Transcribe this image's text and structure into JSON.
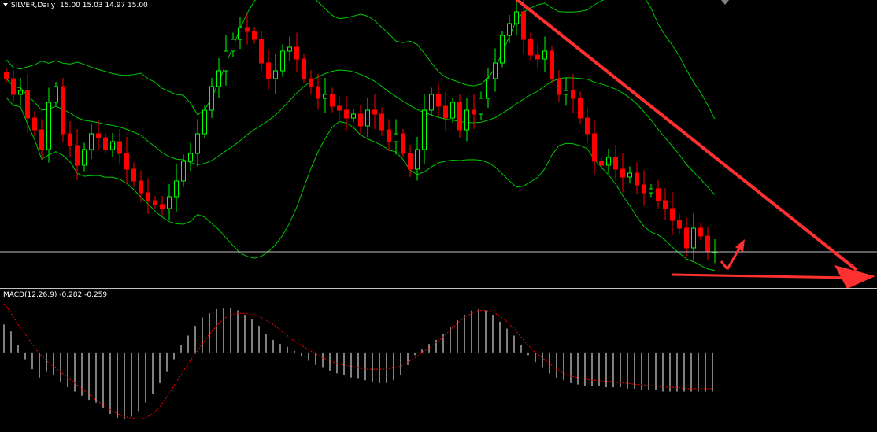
{
  "header": {
    "symbol": "SILVER,Daily",
    "ohlc": "15.00 15.03 14.97 15.00"
  },
  "indicator": {
    "name": "MACD(12,26,9)",
    "main": "-0.282",
    "signal": "-0.259"
  },
  "colors": {
    "background": "#000000",
    "bull": "#00ff00",
    "bear": "#ff0000",
    "bands": "#00c800",
    "annotation": "#ff3030",
    "macd_histogram": "#ffffff",
    "macd_signal": "#ff0000",
    "separator": "#c0c0c0"
  },
  "chart_data": [
    {
      "type": "candlestick",
      "title": "SILVER,Daily",
      "ohlc_readout": [
        15.0,
        15.03,
        14.97,
        15.0
      ],
      "overlays": [
        "bollinger-upper",
        "bollinger-middle",
        "bollinger-lower"
      ],
      "annotations": [
        "downtrend-line",
        "target-arrow",
        "support-line",
        "bounce-arrow"
      ],
      "horizontal_line_level": 15.0,
      "ylim": [
        14.55,
        18.2
      ],
      "closes": [
        17.2,
        17.0,
        17.05,
        16.7,
        16.55,
        16.3,
        16.9,
        17.1,
        16.5,
        16.35,
        16.1,
        16.3,
        16.5,
        16.45,
        16.3,
        16.4,
        16.25,
        16.05,
        15.9,
        15.75,
        15.65,
        15.6,
        15.55,
        15.7,
        15.9,
        16.15,
        16.25,
        16.5,
        16.8,
        17.1,
        17.3,
        17.55,
        17.7,
        17.85,
        17.8,
        17.7,
        17.4,
        17.2,
        17.3,
        17.55,
        17.6,
        17.45,
        17.2,
        17.1,
        16.95,
        17.0,
        16.85,
        16.8,
        16.7,
        16.75,
        16.6,
        16.8,
        16.75,
        16.55,
        16.4,
        16.5,
        16.25,
        16.05,
        16.3,
        16.8,
        17.0,
        16.85,
        16.7,
        16.9,
        16.55,
        16.8,
        16.75,
        16.95,
        17.2,
        17.4,
        17.75,
        17.9,
        18.05,
        17.7,
        17.5,
        17.45,
        17.55,
        17.2,
        17.0,
        17.05,
        16.95,
        16.7,
        16.5,
        16.15,
        16.1,
        16.2,
        16.05,
        15.95,
        16.0,
        15.85,
        15.75,
        15.8,
        15.65,
        15.55,
        15.4,
        15.3,
        15.05,
        15.3,
        15.2,
        15.0,
        15.0
      ],
      "series": [
        {
          "name": "MACD(12,26,9)",
          "type": "histogram",
          "last_value": -0.282,
          "values": [
            0.2,
            0.15,
            0.05,
            -0.05,
            -0.12,
            -0.18,
            -0.14,
            -0.16,
            -0.21,
            -0.25,
            -0.28,
            -0.31,
            -0.34,
            -0.36,
            -0.4,
            -0.44,
            -0.47,
            -0.48,
            -0.46,
            -0.42,
            -0.36,
            -0.3,
            -0.22,
            -0.14,
            -0.05,
            0.05,
            0.12,
            0.19,
            0.25,
            0.28,
            0.31,
            0.32,
            0.32,
            0.3,
            0.27,
            0.24,
            0.19,
            0.13,
            0.09,
            0.06,
            0.04,
            0.01,
            -0.03,
            -0.06,
            -0.09,
            -0.11,
            -0.13,
            -0.15,
            -0.16,
            -0.18,
            -0.19,
            -0.2,
            -0.21,
            -0.22,
            -0.22,
            -0.2,
            -0.16,
            -0.09,
            -0.02,
            0.02,
            0.06,
            0.09,
            0.13,
            0.18,
            0.23,
            0.27,
            0.3,
            0.31,
            0.3,
            0.27,
            0.22,
            0.17,
            0.12,
            0.05,
            -0.02,
            -0.07,
            -0.11,
            -0.15,
            -0.18,
            -0.2,
            -0.22,
            -0.23,
            -0.24,
            -0.24,
            -0.24,
            -0.25,
            -0.25,
            -0.25,
            -0.26,
            -0.26,
            -0.27,
            -0.27,
            -0.27,
            -0.28,
            -0.28,
            -0.28,
            -0.28,
            -0.28,
            -0.28,
            -0.28,
            -0.28
          ]
        },
        {
          "name": "Signal",
          "type": "line",
          "last_value": -0.259,
          "values": [
            0.35,
            0.28,
            0.2,
            0.13,
            0.06,
            -0.01,
            -0.06,
            -0.1,
            -0.14,
            -0.18,
            -0.22,
            -0.26,
            -0.3,
            -0.34,
            -0.38,
            -0.41,
            -0.44,
            -0.46,
            -0.47,
            -0.48,
            -0.47,
            -0.44,
            -0.39,
            -0.32,
            -0.24,
            -0.16,
            -0.08,
            -0.01,
            0.06,
            0.13,
            0.19,
            0.24,
            0.27,
            0.28,
            0.28,
            0.27,
            0.26,
            0.23,
            0.2,
            0.16,
            0.12,
            0.08,
            0.05,
            0.02,
            -0.01,
            -0.04,
            -0.06,
            -0.08,
            -0.09,
            -0.1,
            -0.11,
            -0.12,
            -0.12,
            -0.12,
            -0.12,
            -0.11,
            -0.1,
            -0.07,
            -0.04,
            0.0,
            0.03,
            0.07,
            0.11,
            0.16,
            0.21,
            0.25,
            0.28,
            0.3,
            0.3,
            0.29,
            0.26,
            0.22,
            0.17,
            0.11,
            0.05,
            0.0,
            -0.04,
            -0.08,
            -0.12,
            -0.15,
            -0.17,
            -0.18,
            -0.19,
            -0.2,
            -0.2,
            -0.21,
            -0.21,
            -0.22,
            -0.22,
            -0.23,
            -0.23,
            -0.24,
            -0.24,
            -0.25,
            -0.25,
            -0.25,
            -0.26,
            -0.26,
            -0.26,
            -0.26,
            -0.26
          ]
        }
      ],
      "macd_ylim": [
        -0.52,
        0.36
      ]
    }
  ]
}
